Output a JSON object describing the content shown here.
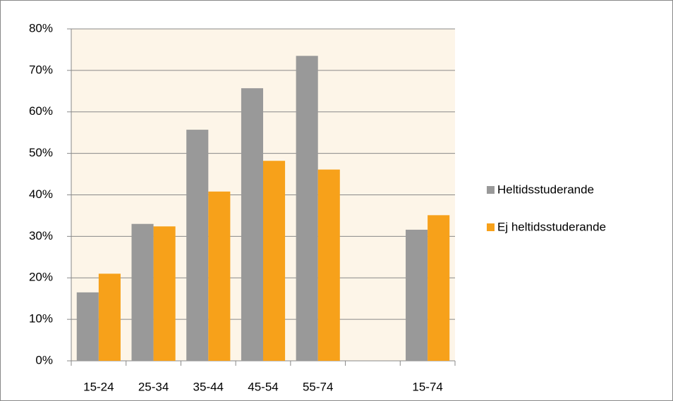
{
  "chart_data": {
    "type": "bar",
    "categories": [
      "15-24",
      "25-34",
      "35-44",
      "45-54",
      "55-74",
      null,
      "15-74"
    ],
    "series": [
      {
        "name": "Heltidsstuderande",
        "color": "#999999",
        "values": [
          16.5,
          33,
          55.7,
          65.7,
          73.5,
          null,
          31.6
        ]
      },
      {
        "name": "Ej heltidsstuderande",
        "color": "#f7a11a",
        "values": [
          21,
          32.4,
          40.8,
          48.2,
          46.1,
          null,
          35.1
        ]
      }
    ],
    "ylim": [
      0,
      80
    ],
    "yticks": [
      {
        "value": 0,
        "label": "0%"
      },
      {
        "value": 10,
        "label": "10%"
      },
      {
        "value": 20,
        "label": "20%"
      },
      {
        "value": 30,
        "label": "30%"
      },
      {
        "value": 40,
        "label": "40%"
      },
      {
        "value": 50,
        "label": "50%"
      },
      {
        "value": 60,
        "label": "60%"
      },
      {
        "value": 70,
        "label": "70%"
      },
      {
        "value": 80,
        "label": "80%"
      }
    ],
    "grid": true,
    "plot_background": "#fdf5e8",
    "legend": "right"
  }
}
